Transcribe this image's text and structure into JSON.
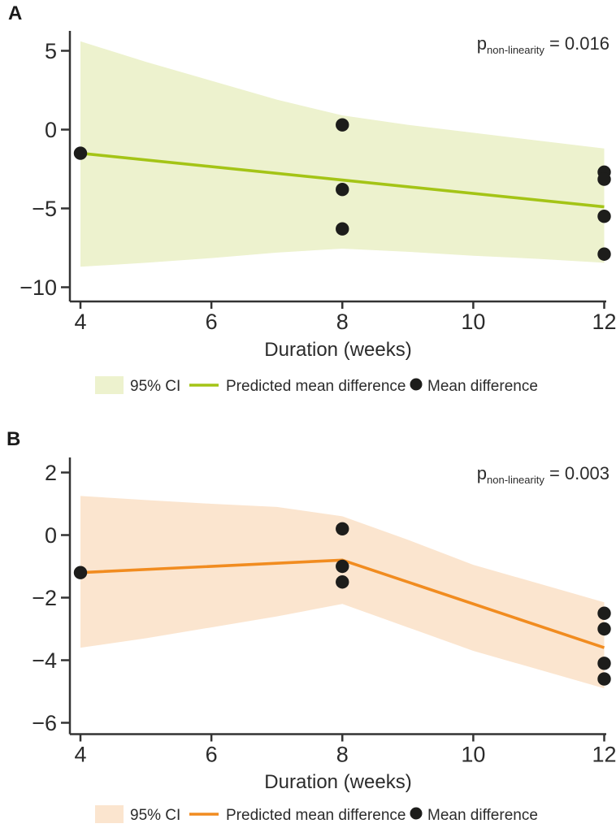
{
  "panels": [
    {
      "label": "A",
      "p_note": {
        "symbol": "p",
        "subscript": "non-linearity",
        "rest": " = 0.016"
      },
      "xlabel": "Duration (weeks)",
      "legend": {
        "ci": "95% CI",
        "line": "Predicted mean difference",
        "dots": "Mean difference"
      },
      "colors": {
        "band": "#edf2ce",
        "line": "#a4c416",
        "dot": "#1d1d1b",
        "axis": "#333333"
      }
    },
    {
      "label": "B",
      "p_note": {
        "symbol": "p",
        "subscript": "non-linearity",
        "rest": " = 0.003"
      },
      "xlabel": "Duration (weeks)",
      "legend": {
        "ci": "95% CI",
        "line": "Predicted mean difference",
        "dots": "Mean difference"
      },
      "colors": {
        "band": "#fbe5cf",
        "line": "#f18c20",
        "dot": "#1d1d1b",
        "axis": "#333333"
      }
    }
  ],
  "chart_data": [
    {
      "type": "line",
      "title": "A",
      "xlabel": "Duration (weeks)",
      "ylabel": "",
      "x_ticks": [
        4,
        6,
        8,
        10,
        12
      ],
      "y_ticks": [
        5,
        0,
        -5,
        -10
      ],
      "xlim": [
        4,
        12
      ],
      "ylim": [
        -10.8,
        6.3
      ],
      "grid": false,
      "legend_position": "bottom",
      "p_nonlinearity": 0.016,
      "series": [
        {
          "name": "95% CI",
          "kind": "band",
          "x": [
            4,
            5,
            6,
            7,
            8,
            9,
            10,
            11,
            12
          ],
          "upper": [
            5.6,
            4.3,
            3.1,
            1.9,
            0.9,
            0.3,
            -0.2,
            -0.7,
            -1.2
          ],
          "lower": [
            -8.7,
            -8.45,
            -8.15,
            -7.8,
            -7.55,
            -7.75,
            -8.0,
            -8.2,
            -8.45
          ]
        },
        {
          "name": "Predicted mean difference",
          "kind": "line",
          "x": [
            4,
            8,
            12
          ],
          "y": [
            -1.5,
            -3.2,
            -4.9
          ]
        },
        {
          "name": "Mean difference",
          "kind": "scatter",
          "x": [
            4,
            8,
            8,
            8,
            12,
            12,
            12,
            12
          ],
          "y": [
            -1.5,
            0.3,
            -3.8,
            -6.3,
            -2.7,
            -3.15,
            -5.5,
            -7.9
          ]
        }
      ]
    },
    {
      "type": "line",
      "title": "B",
      "xlabel": "Duration (weeks)",
      "ylabel": "",
      "x_ticks": [
        4,
        6,
        8,
        10,
        12
      ],
      "y_ticks": [
        2,
        0,
        -2,
        -4,
        -6
      ],
      "xlim": [
        4,
        12
      ],
      "ylim": [
        -6.5,
        2.3
      ],
      "grid": false,
      "legend_position": "bottom",
      "p_nonlinearity": 0.003,
      "series": [
        {
          "name": "95% CI",
          "kind": "band",
          "x": [
            4,
            5,
            6,
            7,
            8,
            9,
            10,
            11,
            12
          ],
          "upper": [
            1.25,
            1.12,
            1.0,
            0.9,
            0.6,
            -0.15,
            -0.95,
            -1.55,
            -2.15
          ],
          "lower": [
            -3.6,
            -3.3,
            -2.95,
            -2.6,
            -2.2,
            -2.95,
            -3.7,
            -4.3,
            -4.9
          ]
        },
        {
          "name": "Predicted mean difference",
          "kind": "line",
          "x": [
            4,
            8,
            12
          ],
          "y": [
            -1.2,
            -0.8,
            -3.6
          ]
        },
        {
          "name": "Mean difference",
          "kind": "scatter",
          "x": [
            4,
            8,
            8,
            8,
            12,
            12,
            12,
            12
          ],
          "y": [
            -1.2,
            0.2,
            -1.0,
            -1.5,
            -2.5,
            -3.0,
            -4.1,
            -4.6
          ]
        }
      ]
    }
  ]
}
